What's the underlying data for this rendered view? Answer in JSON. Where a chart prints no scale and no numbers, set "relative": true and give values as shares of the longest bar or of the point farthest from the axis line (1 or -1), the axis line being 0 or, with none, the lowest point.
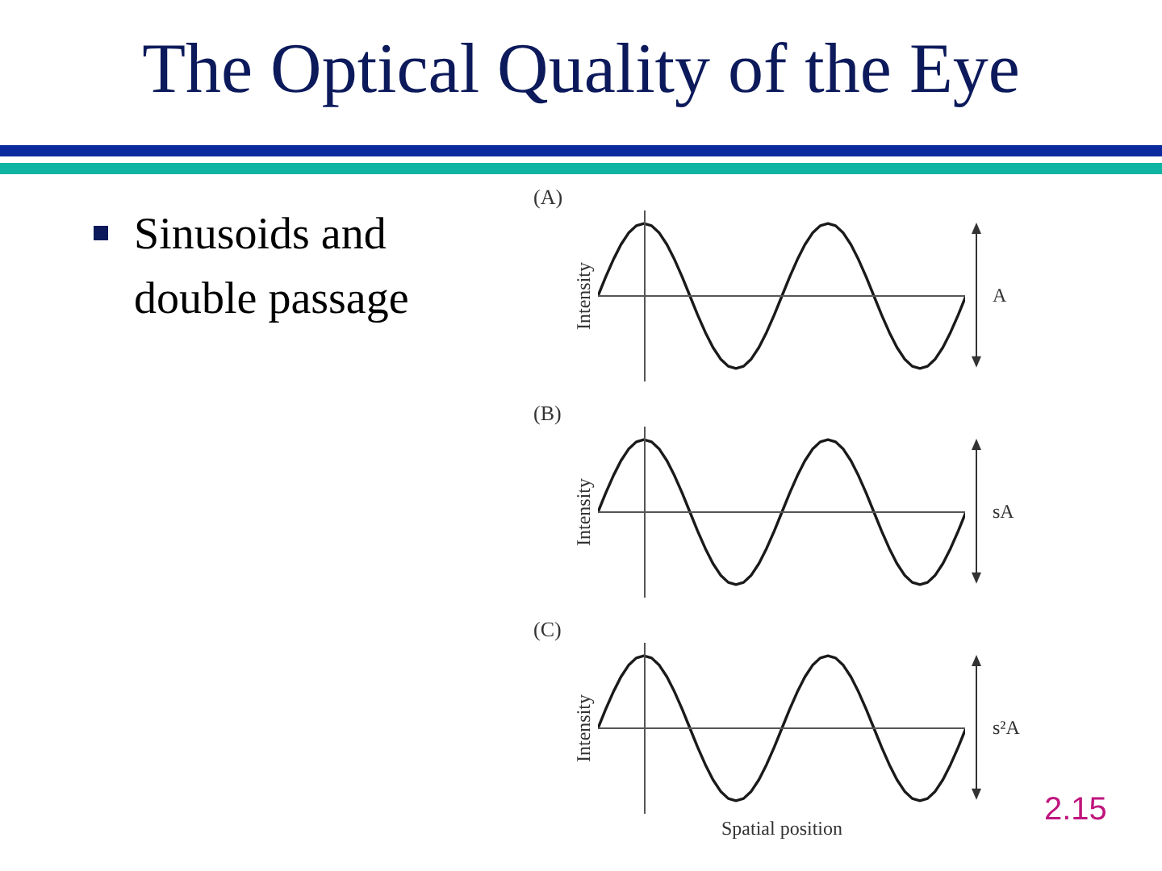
{
  "chart_data": [
    {
      "type": "other",
      "title": "The Optical Quality of the Eye",
      "annotations": [
        "Sinusoids and double passage",
        "2.15"
      ]
    },
    {
      "type": "line",
      "relative": true,
      "title": "(A)",
      "ylabel": "Intensity",
      "annotations": [
        "A"
      ],
      "categories": [
        null,
        null,
        null,
        null,
        null,
        null,
        null,
        null,
        null,
        null,
        null,
        null,
        null,
        null,
        null,
        null,
        null,
        null,
        null,
        null,
        null,
        null,
        null,
        null,
        null,
        null,
        null,
        null,
        null,
        null,
        null,
        null,
        null,
        null,
        null,
        null,
        null,
        null,
        null,
        null,
        null,
        null,
        null,
        null,
        null,
        null,
        null,
        null,
        null
      ],
      "series": [
        {
          "color": "#1a1a1a",
          "values": [
            0,
            0.26,
            0.5,
            0.71,
            0.87,
            0.97,
            1,
            0.97,
            0.87,
            0.71,
            0.5,
            0.26,
            0,
            -0.26,
            -0.5,
            -0.71,
            -0.87,
            -0.97,
            -1,
            -0.97,
            -0.87,
            -0.71,
            -0.5,
            -0.26,
            0,
            0.26,
            0.5,
            0.71,
            0.87,
            0.97,
            1,
            0.97,
            0.87,
            0.71,
            0.5,
            0.26,
            0,
            -0.26,
            -0.5,
            -0.71,
            -0.87,
            -0.97,
            -1,
            -0.97,
            -0.87,
            -0.71,
            -0.5,
            -0.26,
            0
          ]
        }
      ]
    },
    {
      "type": "line",
      "relative": true,
      "title": "(B)",
      "ylabel": "Intensity",
      "annotations": [
        "sA"
      ],
      "categories": [
        null,
        null,
        null,
        null,
        null,
        null,
        null,
        null,
        null,
        null,
        null,
        null,
        null,
        null,
        null,
        null,
        null,
        null,
        null,
        null,
        null,
        null,
        null,
        null,
        null,
        null,
        null,
        null,
        null,
        null,
        null,
        null,
        null,
        null,
        null,
        null,
        null,
        null,
        null,
        null,
        null,
        null,
        null,
        null,
        null,
        null,
        null,
        null,
        null
      ],
      "series": [
        {
          "color": "#1a1a1a",
          "values": [
            0,
            0.26,
            0.5,
            0.71,
            0.87,
            0.97,
            1,
            0.97,
            0.87,
            0.71,
            0.5,
            0.26,
            0,
            -0.26,
            -0.5,
            -0.71,
            -0.87,
            -0.97,
            -1,
            -0.97,
            -0.87,
            -0.71,
            -0.5,
            -0.26,
            0,
            0.26,
            0.5,
            0.71,
            0.87,
            0.97,
            1,
            0.97,
            0.87,
            0.71,
            0.5,
            0.26,
            0,
            -0.26,
            -0.5,
            -0.71,
            -0.87,
            -0.97,
            -1,
            -0.97,
            -0.87,
            -0.71,
            -0.5,
            -0.26,
            0
          ]
        }
      ]
    },
    {
      "type": "line",
      "relative": true,
      "title": "(C)",
      "ylabel": "Intensity",
      "xlabel": "Spatial position",
      "annotations": [
        "s²A"
      ],
      "categories": [
        null,
        null,
        null,
        null,
        null,
        null,
        null,
        null,
        null,
        null,
        null,
        null,
        null,
        null,
        null,
        null,
        null,
        null,
        null,
        null,
        null,
        null,
        null,
        null,
        null,
        null,
        null,
        null,
        null,
        null,
        null,
        null,
        null,
        null,
        null,
        null,
        null,
        null,
        null,
        null,
        null,
        null,
        null,
        null,
        null,
        null,
        null,
        null,
        null
      ],
      "series": [
        {
          "color": "#1a1a1a",
          "values": [
            0,
            0.26,
            0.5,
            0.71,
            0.87,
            0.97,
            1,
            0.97,
            0.87,
            0.71,
            0.5,
            0.26,
            0,
            -0.26,
            -0.5,
            -0.71,
            -0.87,
            -0.97,
            -1,
            -0.97,
            -0.87,
            -0.71,
            -0.5,
            -0.26,
            0,
            0.26,
            0.5,
            0.71,
            0.87,
            0.97,
            1,
            0.97,
            0.87,
            0.71,
            0.5,
            0.26,
            0,
            -0.26,
            -0.5,
            -0.71,
            -0.87,
            -0.97,
            -1,
            -0.97,
            -0.87,
            -0.71,
            -0.5,
            -0.26,
            0
          ]
        }
      ]
    }
  ]
}
